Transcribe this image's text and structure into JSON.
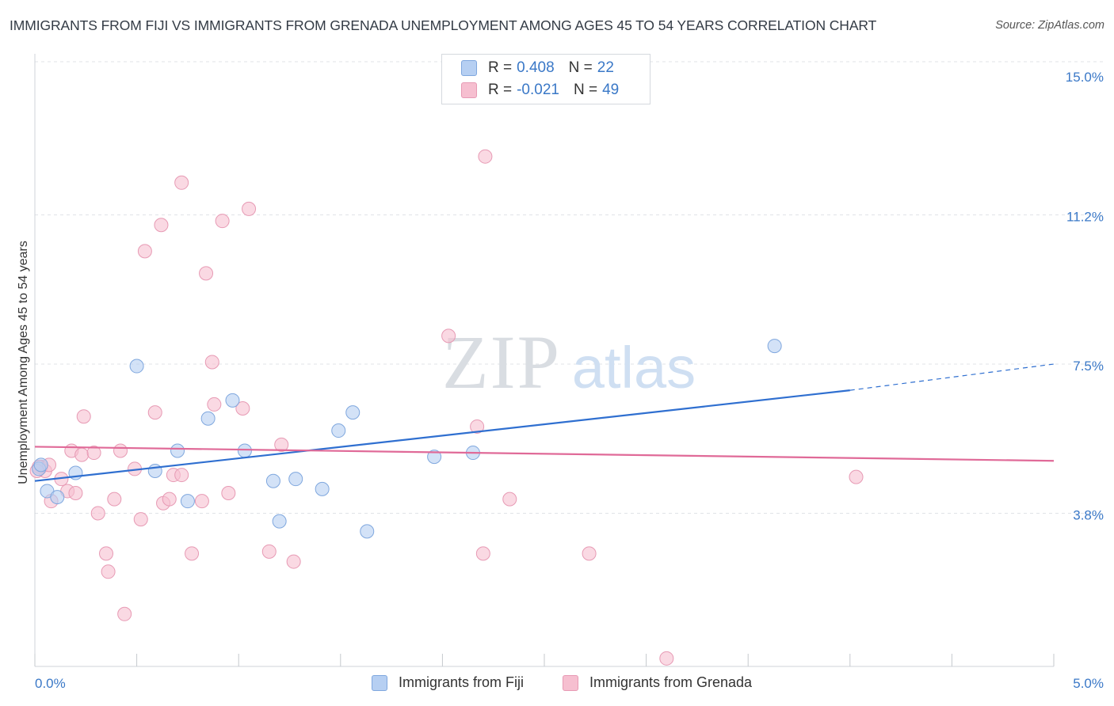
{
  "title": "IMMIGRANTS FROM FIJI VS IMMIGRANTS FROM GRENADA UNEMPLOYMENT AMONG AGES 45 TO 54 YEARS CORRELATION CHART",
  "source": "Source: ZipAtlas.com",
  "legend": {
    "rows": [
      {
        "r_label": "R = ",
        "r_value": "0.408",
        "n_label": "N = ",
        "n_value": "22"
      },
      {
        "r_label": "R = ",
        "r_value": "-0.021",
        "n_label": "N = ",
        "n_value": "49"
      }
    ]
  },
  "bottom_legend": [
    "Immigrants from Fiji",
    "Immigrants from Grenada"
  ],
  "watermark": {
    "zip": "ZIP",
    "atlas": "atlas"
  },
  "colors": {
    "fiji_fill": "#b6cff2",
    "fiji_stroke": "#7fa7de",
    "fiji_line": "#2f6fd0",
    "grenada_fill": "#f6bfd0",
    "grenada_stroke": "#e79ab4",
    "grenada_line": "#e06a98",
    "tick_label": "#3a78c7",
    "grid": "#e0e3e7"
  },
  "chart_data": {
    "type": "scatter",
    "title": "IMMIGRANTS FROM FIJI VS IMMIGRANTS FROM GRENADA UNEMPLOYMENT AMONG AGES 45 TO 54 YEARS CORRELATION CHART",
    "xlabel": "",
    "ylabel": "Unemployment Among Ages 45 to 54 years",
    "xlim": [
      0,
      5.0
    ],
    "ylim": [
      0,
      15.0
    ],
    "x_tick_labels": [
      "0.0%",
      "5.0%"
    ],
    "y_ticks": [
      3.8,
      7.5,
      11.2,
      15.0
    ],
    "y_tick_labels": [
      "3.8%",
      "7.5%",
      "11.2%",
      "15.0%"
    ],
    "grid": true,
    "legend_position": "top-center",
    "series": [
      {
        "name": "Immigrants from Fiji",
        "R": 0.408,
        "N": 22,
        "trend": {
          "x0": 0.0,
          "y0": 4.6,
          "x1": 4.0,
          "y1": 6.85,
          "dashed_to_x": 5.0,
          "dashed_to_y": 7.5
        },
        "points": [
          {
            "x": 0.02,
            "y": 4.9
          },
          {
            "x": 0.06,
            "y": 4.35
          },
          {
            "x": 0.11,
            "y": 4.2
          },
          {
            "x": 0.2,
            "y": 4.8
          },
          {
            "x": 0.5,
            "y": 7.45
          },
          {
            "x": 0.59,
            "y": 4.85
          },
          {
            "x": 0.7,
            "y": 5.35
          },
          {
            "x": 0.75,
            "y": 4.1
          },
          {
            "x": 0.85,
            "y": 6.15
          },
          {
            "x": 0.97,
            "y": 6.6
          },
          {
            "x": 1.03,
            "y": 5.35
          },
          {
            "x": 1.17,
            "y": 4.6
          },
          {
            "x": 1.2,
            "y": 3.6
          },
          {
            "x": 1.28,
            "y": 4.65
          },
          {
            "x": 1.41,
            "y": 4.4
          },
          {
            "x": 1.49,
            "y": 5.85
          },
          {
            "x": 1.56,
            "y": 6.3
          },
          {
            "x": 1.63,
            "y": 3.35
          },
          {
            "x": 1.96,
            "y": 5.2
          },
          {
            "x": 2.15,
            "y": 5.3
          },
          {
            "x": 3.63,
            "y": 7.95
          },
          {
            "x": 0.03,
            "y": 5.0
          }
        ]
      },
      {
        "name": "Immigrants from Grenada",
        "R": -0.021,
        "N": 49,
        "trend": {
          "x0": 0.0,
          "y0": 5.45,
          "x1": 5.0,
          "y1": 5.1
        },
        "points": [
          {
            "x": 0.03,
            "y": 4.95
          },
          {
            "x": 0.08,
            "y": 4.1
          },
          {
            "x": 0.13,
            "y": 4.65
          },
          {
            "x": 0.16,
            "y": 4.35
          },
          {
            "x": 0.18,
            "y": 5.35
          },
          {
            "x": 0.2,
            "y": 4.3
          },
          {
            "x": 0.23,
            "y": 5.25
          },
          {
            "x": 0.24,
            "y": 6.2
          },
          {
            "x": 0.29,
            "y": 5.3
          },
          {
            "x": 0.31,
            "y": 3.8
          },
          {
            "x": 0.35,
            "y": 2.8
          },
          {
            "x": 0.36,
            "y": 2.35
          },
          {
            "x": 0.39,
            "y": 4.15
          },
          {
            "x": 0.42,
            "y": 5.35
          },
          {
            "x": 0.44,
            "y": 1.3
          },
          {
            "x": 0.49,
            "y": 4.9
          },
          {
            "x": 0.52,
            "y": 3.65
          },
          {
            "x": 0.54,
            "y": 10.3
          },
          {
            "x": 0.59,
            "y": 6.3
          },
          {
            "x": 0.62,
            "y": 10.95
          },
          {
            "x": 0.63,
            "y": 4.05
          },
          {
            "x": 0.66,
            "y": 4.15
          },
          {
            "x": 0.68,
            "y": 4.75
          },
          {
            "x": 0.72,
            "y": 4.75
          },
          {
            "x": 0.72,
            "y": 12.0
          },
          {
            "x": 0.77,
            "y": 2.8
          },
          {
            "x": 0.82,
            "y": 4.1
          },
          {
            "x": 0.84,
            "y": 9.75
          },
          {
            "x": 0.87,
            "y": 7.55
          },
          {
            "x": 0.88,
            "y": 6.5
          },
          {
            "x": 0.92,
            "y": 11.05
          },
          {
            "x": 0.95,
            "y": 4.3
          },
          {
            "x": 1.02,
            "y": 6.4
          },
          {
            "x": 1.05,
            "y": 11.35
          },
          {
            "x": 1.15,
            "y": 2.85
          },
          {
            "x": 1.21,
            "y": 5.5
          },
          {
            "x": 1.27,
            "y": 2.6
          },
          {
            "x": 2.03,
            "y": 8.2
          },
          {
            "x": 2.17,
            "y": 5.95
          },
          {
            "x": 2.2,
            "y": 2.8
          },
          {
            "x": 2.21,
            "y": 12.65
          },
          {
            "x": 2.33,
            "y": 4.15
          },
          {
            "x": 2.72,
            "y": 2.8
          },
          {
            "x": 3.1,
            "y": 0.2
          },
          {
            "x": 4.03,
            "y": 4.7
          },
          {
            "x": 0.05,
            "y": 4.85
          },
          {
            "x": 0.02,
            "y": 4.95
          },
          {
            "x": 0.07,
            "y": 5.0
          },
          {
            "x": 0.01,
            "y": 4.85
          }
        ]
      }
    ]
  }
}
